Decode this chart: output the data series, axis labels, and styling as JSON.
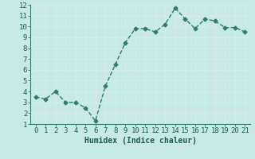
{
  "x": [
    0,
    1,
    2,
    3,
    4,
    5,
    6,
    7,
    8,
    9,
    10,
    11,
    12,
    13,
    14,
    15,
    16,
    17,
    18,
    19,
    20,
    21
  ],
  "y": [
    3.5,
    3.3,
    4.0,
    3.0,
    3.0,
    2.5,
    1.3,
    4.5,
    6.5,
    8.5,
    9.8,
    9.8,
    9.5,
    10.2,
    11.7,
    10.7,
    9.8,
    10.7,
    10.5,
    9.9,
    9.9,
    9.5
  ],
  "xlabel": "Humidex (Indice chaleur)",
  "xlim": [
    -0.5,
    21.5
  ],
  "ylim": [
    1,
    12
  ],
  "yticks": [
    1,
    2,
    3,
    4,
    5,
    6,
    7,
    8,
    9,
    10,
    11,
    12
  ],
  "xticks": [
    0,
    1,
    2,
    3,
    4,
    5,
    6,
    7,
    8,
    9,
    10,
    11,
    12,
    13,
    14,
    15,
    16,
    17,
    18,
    19,
    20,
    21
  ],
  "line_color": "#2e7d6e",
  "marker": "D",
  "marker_size": 2.5,
  "marker_color": "#2e7d6e",
  "bg_color": "#c8eae6",
  "grid_color": "#d8ece9",
  "xlabel_fontsize": 7,
  "tick_fontsize": 6.5,
  "linewidth": 1.0
}
